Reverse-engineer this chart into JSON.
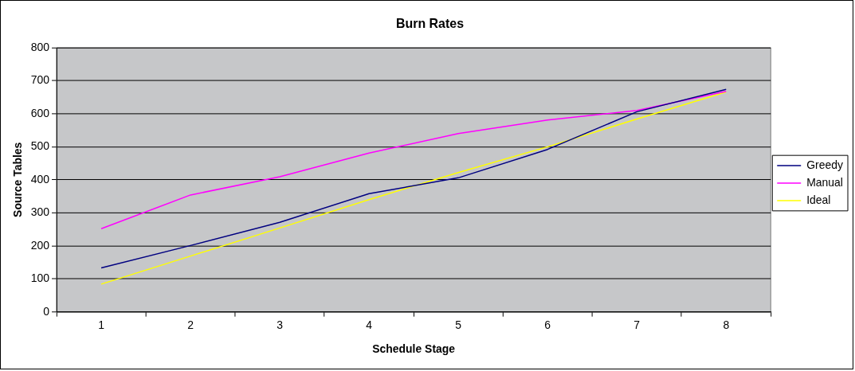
{
  "chart_data": {
    "type": "line",
    "title": "Burn Rates",
    "xlabel": "Schedule Stage",
    "ylabel": "Source Tables",
    "categories": [
      "1",
      "2",
      "3",
      "4",
      "5",
      "6",
      "7",
      "8"
    ],
    "series": [
      {
        "name": "Greedy",
        "color": "#000080",
        "values": [
          133,
          201,
          271,
          358,
          406,
          492,
          606,
          674
        ]
      },
      {
        "name": "Manual",
        "color": "#ff00ff",
        "values": [
          252,
          354,
          409,
          481,
          540,
          581,
          610,
          668
        ]
      },
      {
        "name": "Ideal",
        "color": "#ffff00",
        "values": [
          84,
          169,
          254,
          340,
          422,
          500,
          584,
          666
        ]
      }
    ],
    "ylim": [
      0,
      800
    ],
    "yticks": [
      0,
      100,
      200,
      300,
      400,
      500,
      600,
      700,
      800
    ],
    "grid": "y",
    "legend": "right",
    "marker": "none",
    "line_style": "solid"
  }
}
